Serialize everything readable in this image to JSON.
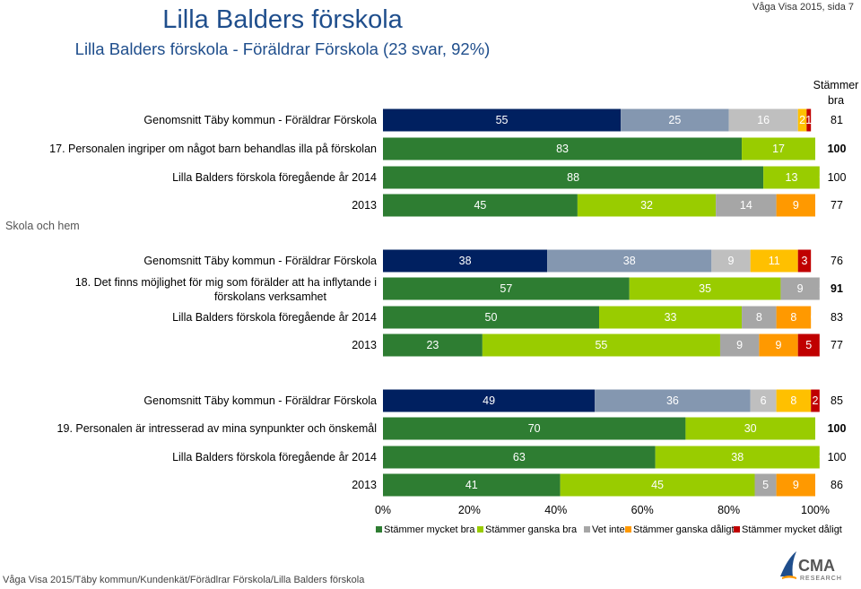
{
  "header": {
    "title": "Lilla Balders förskola",
    "subtitle": "Lilla Balders förskola - Föräldrar Förskola (23 svar, 92%)",
    "page_ref": "Våga Visa 2015, sida 7",
    "column_header_line1": "Stämmer",
    "column_header_line2": "bra"
  },
  "section_label": "Skola och hem",
  "footer": "Våga Visa 2015/Täby kommun/Kundenkät/Förädlrar Förskola/Lilla Balders förskola",
  "logo": {
    "text": "CMA",
    "subtext": "RESEARCH"
  },
  "chart_data": {
    "type": "bar",
    "orientation": "horizontal",
    "stacked": true,
    "xlim": [
      0,
      100
    ],
    "x_ticks": [
      "0%",
      "20%",
      "40%",
      "60%",
      "80%",
      "100%"
    ],
    "legend_position": "bottom",
    "series": [
      {
        "name": "Stämmer mycket bra",
        "color": "#2e7d32"
      },
      {
        "name": "Stämmer ganska bra",
        "color": "#99cc00"
      },
      {
        "name": "Vet inte",
        "color": "#a6a6a6"
      },
      {
        "name": "Stämmer ganska dåligt",
        "color": "#ff9900"
      },
      {
        "name": "Stämmer mycket dåligt",
        "color": "#c00000"
      }
    ],
    "kommun_colors": [
      "#002060",
      "#8497b0",
      "#bfbfbf",
      "#ffc000",
      "#c00000"
    ],
    "questions": [
      {
        "label": "17. Personalen ingriper om något barn behandlas illa på förskolan",
        "rows": [
          {
            "label": "Genomsnitt Täby kommun - Föräldrar Förskola",
            "kind": "kommun",
            "values": [
              55,
              25,
              16,
              2,
              1
            ],
            "labels": [
              "55",
              "25",
              "16",
              "2",
              "1"
            ],
            "total": "81"
          },
          {
            "label": "17. Personalen ingriper om något barn behandlas illa på förskolan",
            "kind": "current",
            "values": [
              83,
              17,
              0,
              0,
              0
            ],
            "labels": [
              "83",
              "17",
              "0",
              "",
              ""
            ],
            "total": "100"
          },
          {
            "label": "Lilla Balders förskola föregående år 2014",
            "kind": "year",
            "values": [
              88,
              13,
              0,
              0,
              0
            ],
            "labels": [
              "88",
              "13",
              "0",
              "",
              ""
            ],
            "total": "100"
          },
          {
            "label": "2013",
            "kind": "year",
            "values": [
              45,
              32,
              14,
              9,
              0
            ],
            "labels": [
              "45",
              "32",
              "14",
              "9",
              "0"
            ],
            "total": "77"
          }
        ]
      },
      {
        "label": "18. Det finns möjlighet för mig som förälder att ha inflytande i förskolans verksamhet",
        "rows": [
          {
            "label": "Genomsnitt Täby kommun - Föräldrar Förskola",
            "kind": "kommun",
            "values": [
              38,
              38,
              9,
              11,
              3
            ],
            "labels": [
              "38",
              "38",
              "9",
              "11",
              "3"
            ],
            "total": "76"
          },
          {
            "label": "18. Det finns möjlighet för mig som förälder att ha inflytande i förskolans verksamhet",
            "kind": "current",
            "values": [
              57,
              35,
              9,
              0,
              0
            ],
            "labels": [
              "57",
              "35",
              "9",
              "0",
              ""
            ],
            "total": "91"
          },
          {
            "label": "Lilla Balders förskola föregående år 2014",
            "kind": "year",
            "values": [
              50,
              33,
              8,
              8,
              0
            ],
            "labels": [
              "50",
              "33",
              "8",
              "8",
              "0"
            ],
            "total": "83"
          },
          {
            "label": "2013",
            "kind": "year",
            "values": [
              23,
              55,
              9,
              9,
              5
            ],
            "labels": [
              "23",
              "55",
              "9",
              "9",
              "5"
            ],
            "total": "77"
          }
        ]
      },
      {
        "label": "19. Personalen är intresserad av mina synpunkter och önskemål",
        "rows": [
          {
            "label": "Genomsnitt Täby kommun - Föräldrar Förskola",
            "kind": "kommun",
            "values": [
              49,
              36,
              6,
              8,
              2
            ],
            "labels": [
              "49",
              "36",
              "6",
              "8",
              "2"
            ],
            "total": "85"
          },
          {
            "label": "19. Personalen är intresserad av mina synpunkter och önskemål",
            "kind": "current",
            "values": [
              70,
              30,
              0,
              0,
              0
            ],
            "labels": [
              "70",
              "30",
              "0",
              "",
              ""
            ],
            "total": "100"
          },
          {
            "label": "Lilla Balders förskola föregående år 2014",
            "kind": "year",
            "values": [
              63,
              38,
              0,
              0,
              0
            ],
            "labels": [
              "63",
              "38",
              "0",
              "",
              ""
            ],
            "total": "100"
          },
          {
            "label": "2013",
            "kind": "year",
            "values": [
              41,
              45,
              5,
              9,
              0
            ],
            "labels": [
              "41",
              "45",
              "5",
              "9",
              "0"
            ],
            "total": "86"
          }
        ]
      }
    ]
  }
}
